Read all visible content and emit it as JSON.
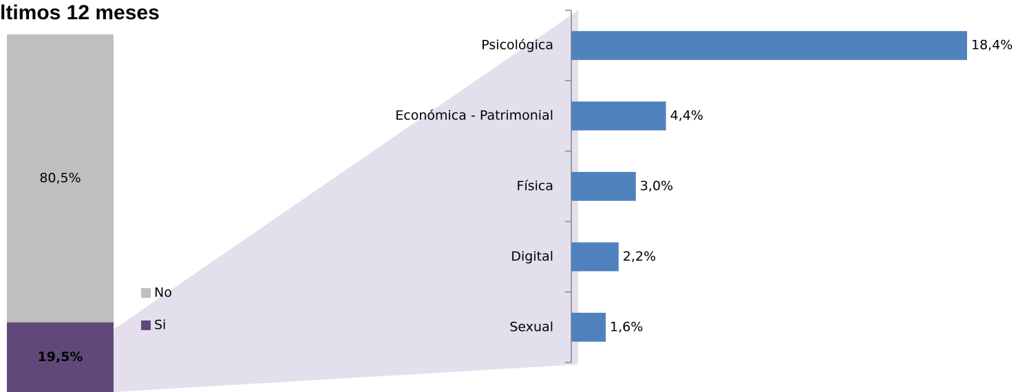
{
  "chart_data": [
    {
      "type": "bar",
      "stacked": true,
      "title": "ltimos 12 meses",
      "series": [
        {
          "name": "No",
          "color": "#bfbfbf",
          "values": [
            80.5
          ],
          "value_labels": [
            "80,5%"
          ]
        },
        {
          "name": "Si",
          "color": "#60497a",
          "values": [
            19.5
          ],
          "value_labels": [
            "19,5%"
          ]
        }
      ],
      "ylim": [
        0,
        100
      ]
    },
    {
      "type": "bar",
      "orientation": "horizontal",
      "color": "#4f81bd",
      "categories": [
        "Psicológica",
        "Económica - Patrimonial",
        "Física",
        "Digital",
        "Sexual"
      ],
      "values": [
        18.4,
        4.4,
        3.0,
        2.2,
        1.6
      ],
      "value_labels": [
        "18,4%",
        "4,4%",
        "3,0%",
        "2,2%",
        "1,6%"
      ],
      "xlim": [
        0,
        20
      ]
    }
  ]
}
